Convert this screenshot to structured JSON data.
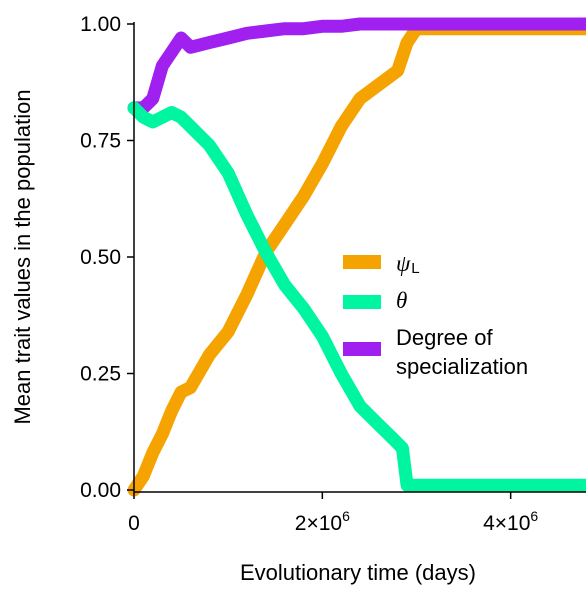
{
  "chart_data": {
    "type": "line",
    "xlabel": "Evolutionary time (days)",
    "ylabel": "Mean trait values in the population",
    "xlim": [
      0,
      4800000
    ],
    "ylim": [
      0,
      1
    ],
    "x_ticks": [
      {
        "value": 0,
        "label": "0"
      },
      {
        "value": 2000000,
        "label": "2×10^6"
      },
      {
        "value": 4000000,
        "label": "4×10^6"
      }
    ],
    "y_ticks": [
      {
        "value": 0,
        "label": "0.00"
      },
      {
        "value": 0.25,
        "label": "0.25"
      },
      {
        "value": 0.5,
        "label": "0.50"
      },
      {
        "value": 0.75,
        "label": "0.75"
      },
      {
        "value": 1.0,
        "label": "1.00"
      }
    ],
    "grid": false,
    "legend_position": "right-center",
    "series": [
      {
        "key": "psi",
        "name": "ψL",
        "color": "#F5A300",
        "x": [
          0,
          100000,
          200000,
          300000,
          400000,
          500000,
          600000,
          800000,
          1000000,
          1200000,
          1400000,
          1600000,
          1800000,
          2000000,
          2200000,
          2400000,
          2600000,
          2800000,
          2900000,
          3000000,
          3500000,
          4000000,
          4500000,
          4800000
        ],
        "y": [
          0.0,
          0.03,
          0.08,
          0.12,
          0.17,
          0.21,
          0.22,
          0.29,
          0.34,
          0.42,
          0.51,
          0.57,
          0.63,
          0.7,
          0.78,
          0.84,
          0.87,
          0.9,
          0.96,
          0.99,
          0.99,
          0.99,
          0.99,
          0.99
        ]
      },
      {
        "key": "theta",
        "name": "θ",
        "color": "#00F5A0",
        "x": [
          0,
          100000,
          200000,
          300000,
          400000,
          500000,
          600000,
          800000,
          1000000,
          1200000,
          1400000,
          1600000,
          1800000,
          2000000,
          2200000,
          2400000,
          2600000,
          2750000,
          2850000,
          2900000,
          3000000,
          3500000,
          4000000,
          4500000,
          4800000
        ],
        "y": [
          0.82,
          0.8,
          0.79,
          0.8,
          0.81,
          0.8,
          0.78,
          0.74,
          0.68,
          0.59,
          0.51,
          0.44,
          0.39,
          0.33,
          0.25,
          0.18,
          0.14,
          0.11,
          0.09,
          0.01,
          0.01,
          0.01,
          0.01,
          0.01,
          0.01
        ]
      },
      {
        "key": "spec",
        "name": "Degree of specialization",
        "color": "#A020F0",
        "x": [
          0,
          100000,
          200000,
          300000,
          400000,
          500000,
          600000,
          800000,
          1000000,
          1200000,
          1400000,
          1600000,
          1800000,
          2000000,
          2200000,
          2400000,
          2600000,
          3000000,
          3500000,
          4000000,
          4500000,
          4800000
        ],
        "y": [
          0.82,
          0.82,
          0.84,
          0.91,
          0.94,
          0.97,
          0.95,
          0.96,
          0.97,
          0.98,
          0.985,
          0.99,
          0.99,
          0.995,
          0.995,
          1.0,
          1.0,
          1.0,
          1.0,
          1.0,
          1.0,
          1.0
        ]
      }
    ],
    "legend": {
      "psi": {
        "symbol": "ψ",
        "subscript": "L"
      },
      "theta": {
        "symbol": "θ"
      },
      "spec": {
        "line1": "Degree of",
        "line2": "specialization"
      }
    }
  }
}
